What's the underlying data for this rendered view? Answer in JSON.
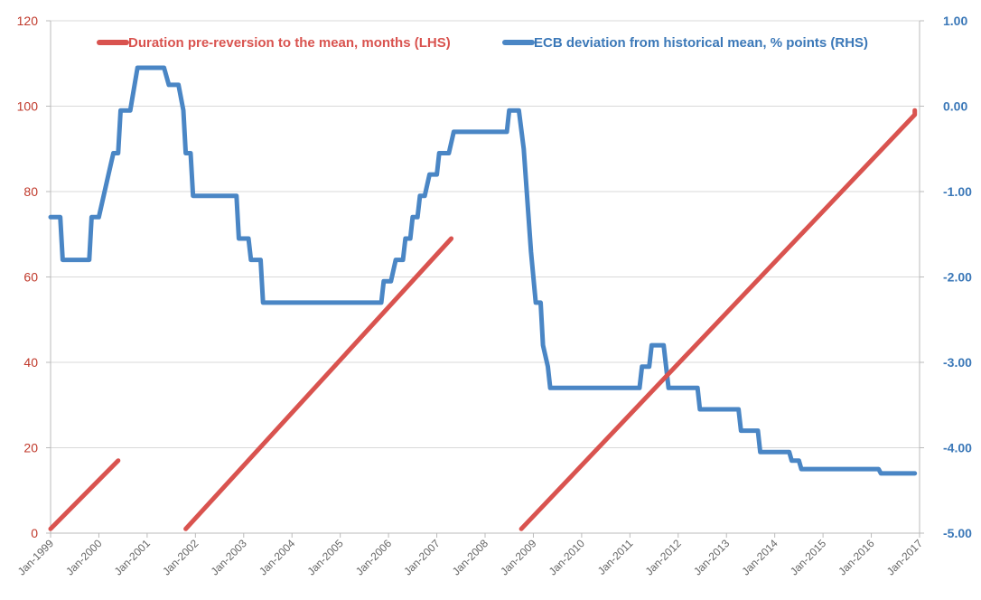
{
  "chart_data": {
    "type": "line",
    "title": "",
    "xlabel": "",
    "ylabel_left": "",
    "ylabel_right": "",
    "x_ticks": [
      "Jan-1999",
      "Jan-2000",
      "Jan-2001",
      "Jan-2002",
      "Jan-2003",
      "Jan-2004",
      "Jan-2005",
      "Jan-2006",
      "Jan-2007",
      "Jan-2008",
      "Jan-2009",
      "Jan-2010",
      "Jan-2011",
      "Jan-2012",
      "Jan-2013",
      "Jan-2014",
      "Jan-2015",
      "Jan-2016",
      "Jan-2017"
    ],
    "y_left": {
      "min": 0,
      "max": 120,
      "ticks": [
        "0",
        "20",
        "40",
        "60",
        "80",
        "100",
        "120"
      ]
    },
    "y_right": {
      "min": -5,
      "max": 1,
      "ticks": [
        "-5.00",
        "-4.00",
        "-3.00",
        "-2.00",
        "-1.00",
        "0.00",
        "1.00"
      ]
    },
    "grid": true,
    "legend_position": "top",
    "colors": {
      "duration": "#D9534F",
      "ecb": "#4A86C5",
      "left_axis": "#C0392B",
      "right_axis": "#3B78B8",
      "grid": "#D9D9D9"
    },
    "series": [
      {
        "name": "Duration pre-reversion to the mean, months (LHS)",
        "axis": "left",
        "segments": [
          [
            [
              1999.0,
              1
            ],
            [
              2000.4,
              17
            ]
          ],
          [
            [
              2001.8,
              1
            ],
            [
              2007.3,
              69
            ]
          ],
          [
            [
              2008.75,
              1
            ],
            [
              2016.9,
              98
            ],
            [
              2016.9,
              99
            ]
          ]
        ]
      },
      {
        "name": "ECB deviation from historical mean, % points (RHS)",
        "axis": "right",
        "points": [
          [
            1999.0,
            -1.3
          ],
          [
            1999.2,
            -1.3
          ],
          [
            1999.25,
            -1.8
          ],
          [
            1999.8,
            -1.8
          ],
          [
            1999.85,
            -1.3
          ],
          [
            2000.0,
            -1.3
          ],
          [
            2000.2,
            -0.8
          ],
          [
            2000.3,
            -0.55
          ],
          [
            2000.4,
            -0.55
          ],
          [
            2000.45,
            -0.05
          ],
          [
            2000.65,
            -0.05
          ],
          [
            2000.8,
            0.45
          ],
          [
            2001.35,
            0.45
          ],
          [
            2001.45,
            0.25
          ],
          [
            2001.65,
            0.25
          ],
          [
            2001.75,
            -0.05
          ],
          [
            2001.8,
            -0.55
          ],
          [
            2001.9,
            -0.55
          ],
          [
            2001.95,
            -1.05
          ],
          [
            2002.85,
            -1.05
          ],
          [
            2002.9,
            -1.55
          ],
          [
            2003.1,
            -1.55
          ],
          [
            2003.15,
            -1.8
          ],
          [
            2003.35,
            -1.8
          ],
          [
            2003.4,
            -2.3
          ],
          [
            2005.85,
            -2.3
          ],
          [
            2005.9,
            -2.05
          ],
          [
            2006.05,
            -2.05
          ],
          [
            2006.15,
            -1.8
          ],
          [
            2006.3,
            -1.8
          ],
          [
            2006.35,
            -1.55
          ],
          [
            2006.45,
            -1.55
          ],
          [
            2006.5,
            -1.3
          ],
          [
            2006.6,
            -1.3
          ],
          [
            2006.65,
            -1.05
          ],
          [
            2006.75,
            -1.05
          ],
          [
            2006.85,
            -0.8
          ],
          [
            2007.0,
            -0.8
          ],
          [
            2007.05,
            -0.55
          ],
          [
            2007.25,
            -0.55
          ],
          [
            2007.35,
            -0.3
          ],
          [
            2008.45,
            -0.3
          ],
          [
            2008.5,
            -0.05
          ],
          [
            2008.7,
            -0.05
          ],
          [
            2008.8,
            -0.5
          ],
          [
            2008.95,
            -1.7
          ],
          [
            2009.05,
            -2.3
          ],
          [
            2009.15,
            -2.3
          ],
          [
            2009.2,
            -2.8
          ],
          [
            2009.3,
            -3.05
          ],
          [
            2009.35,
            -3.3
          ],
          [
            2011.2,
            -3.3
          ],
          [
            2011.25,
            -3.05
          ],
          [
            2011.4,
            -3.05
          ],
          [
            2011.45,
            -2.8
          ],
          [
            2011.7,
            -2.8
          ],
          [
            2011.8,
            -3.3
          ],
          [
            2012.4,
            -3.3
          ],
          [
            2012.45,
            -3.55
          ],
          [
            2013.25,
            -3.55
          ],
          [
            2013.3,
            -3.8
          ],
          [
            2013.65,
            -3.8
          ],
          [
            2013.7,
            -4.05
          ],
          [
            2014.3,
            -4.05
          ],
          [
            2014.35,
            -4.15
          ],
          [
            2014.5,
            -4.15
          ],
          [
            2014.55,
            -4.25
          ],
          [
            2016.15,
            -4.25
          ],
          [
            2016.2,
            -4.3
          ],
          [
            2016.9,
            -4.3
          ]
        ]
      }
    ]
  }
}
